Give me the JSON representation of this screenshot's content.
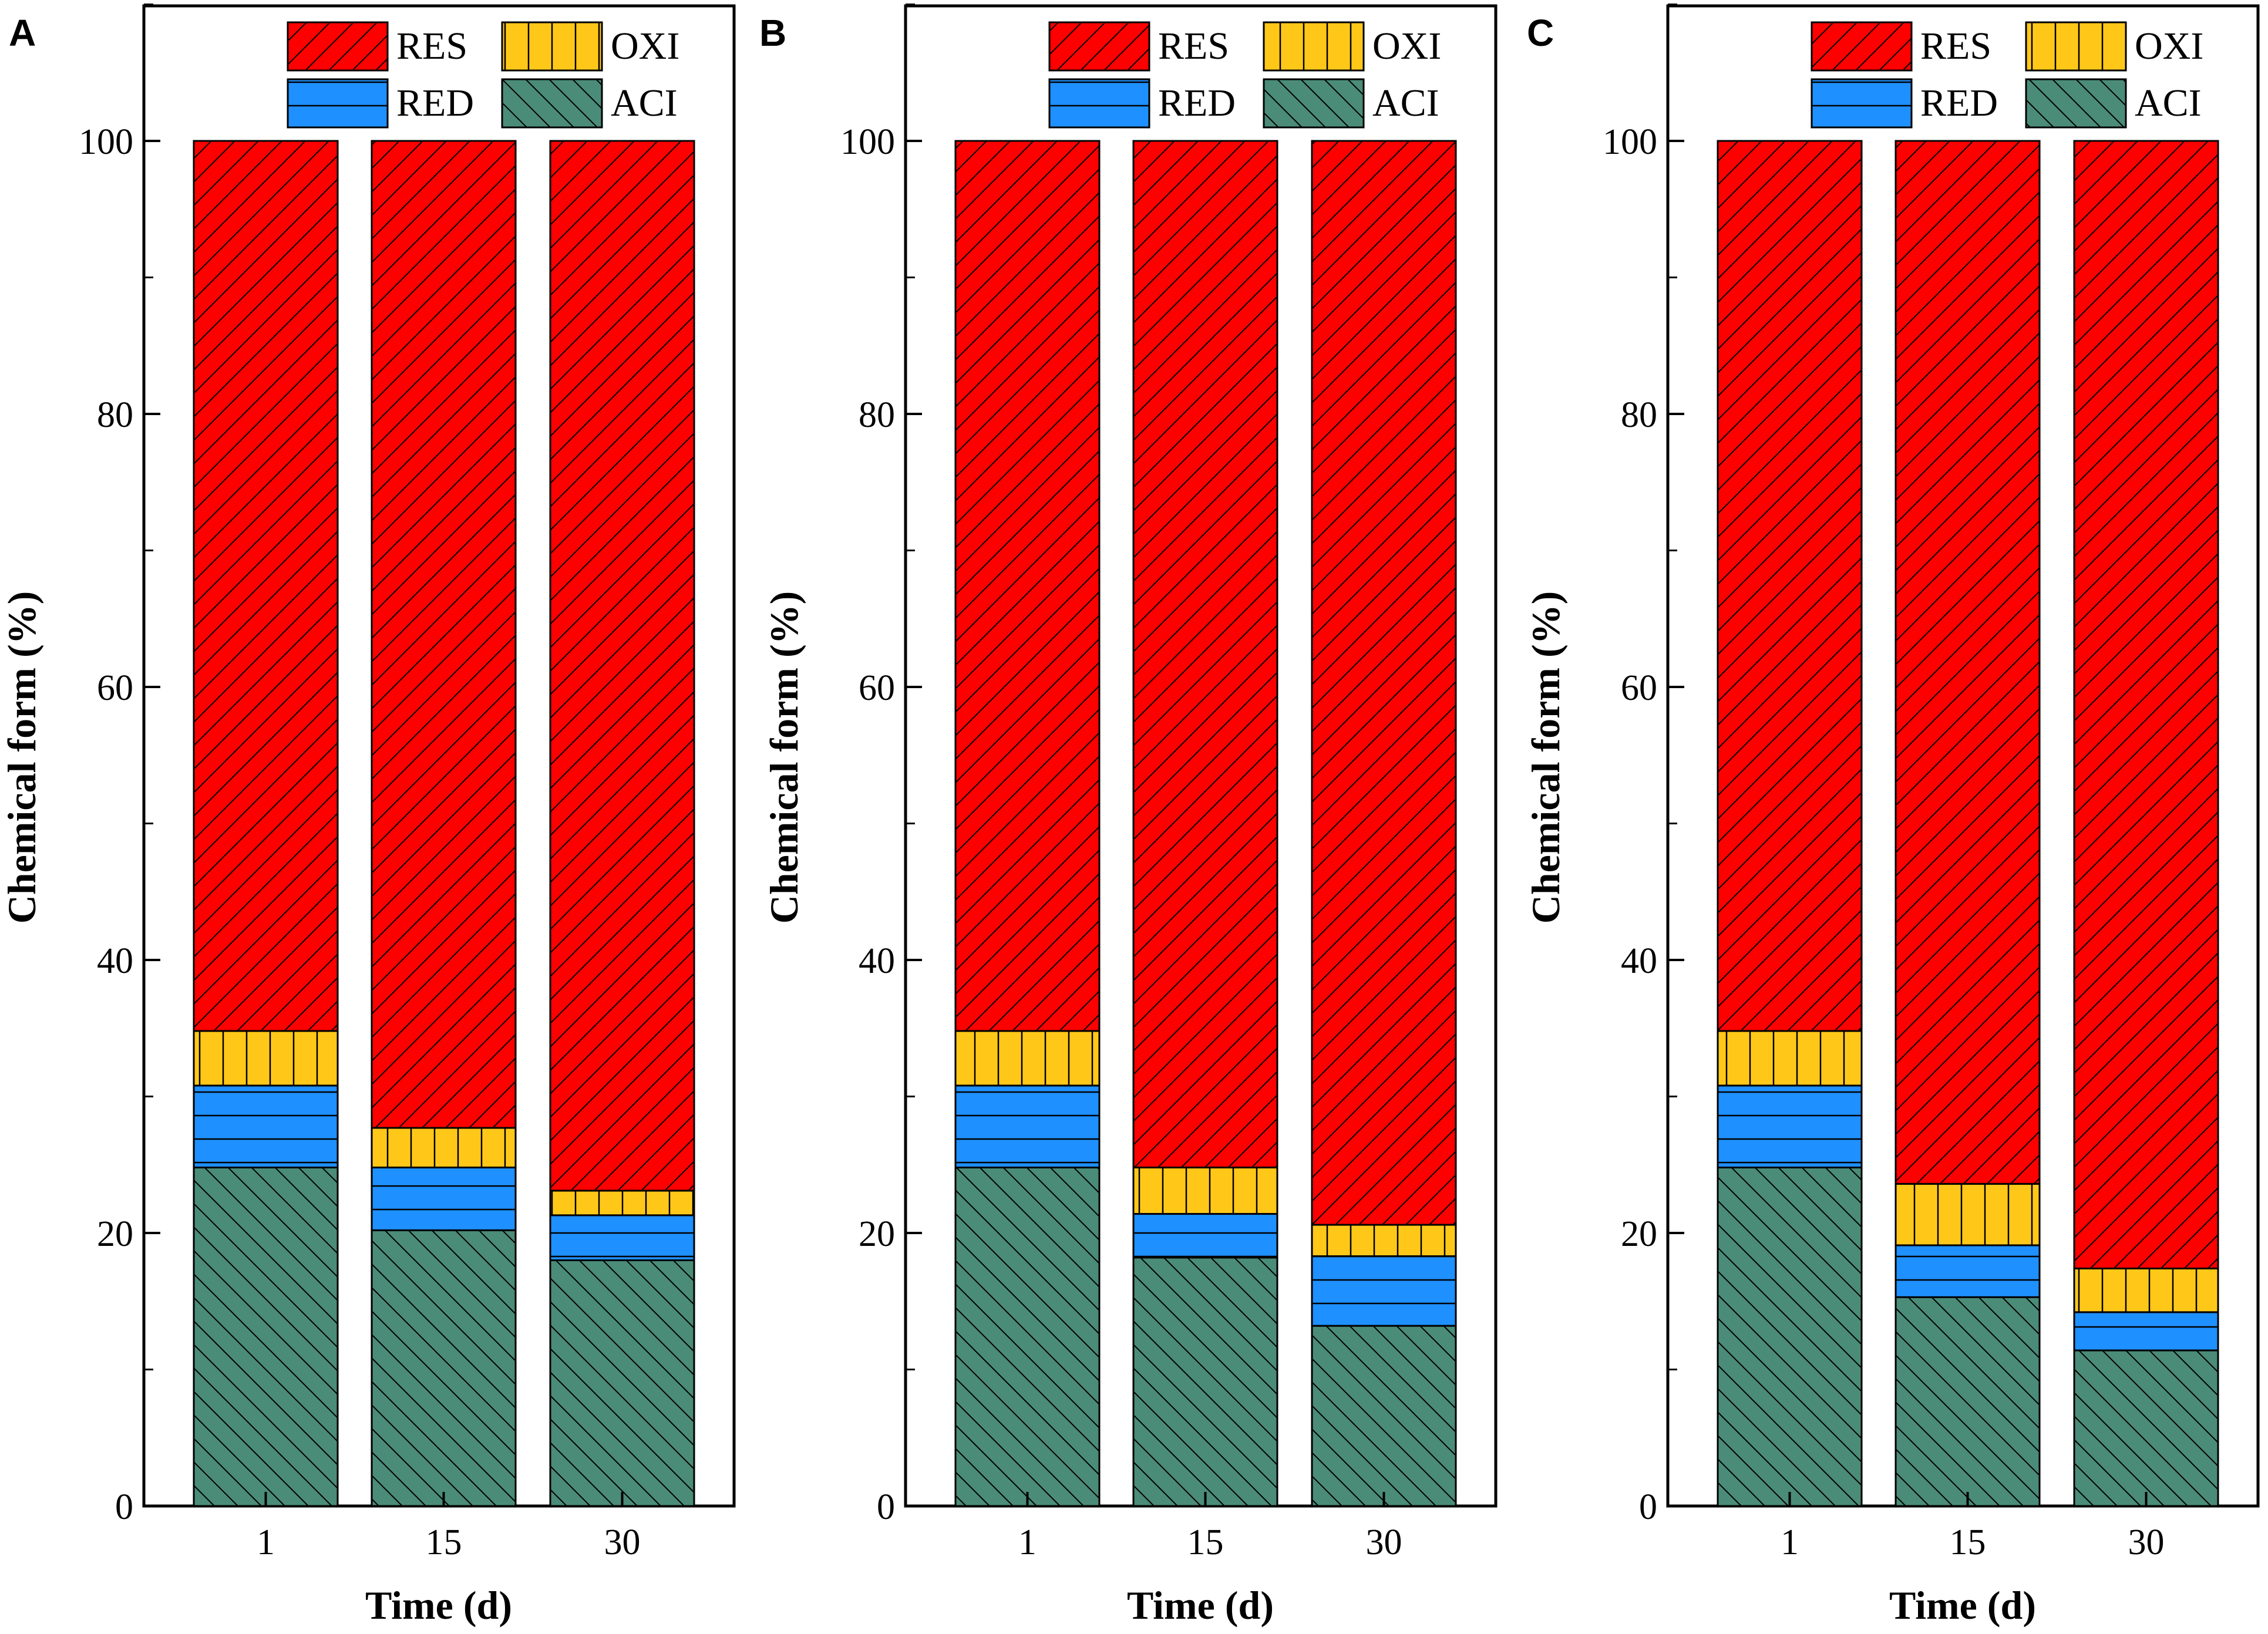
{
  "chart_data": [
    {
      "type": "bar",
      "stacked": true,
      "panel_label": "A",
      "categories": [
        "1",
        "15",
        "30"
      ],
      "xlabel": "Time (d)",
      "ylabel": "Chemical form (%)",
      "ylim": [
        0,
        110
      ],
      "yticks": [
        "0",
        "20",
        "40",
        "60",
        "80",
        "100"
      ],
      "legend_position": "top",
      "series": [
        {
          "name": "ACI",
          "values": [
            24.8,
            20.2,
            18.0
          ]
        },
        {
          "name": "RED",
          "values": [
            6.0,
            4.6,
            3.3
          ]
        },
        {
          "name": "OXI",
          "values": [
            4.0,
            2.9,
            1.8
          ]
        },
        {
          "name": "RES",
          "values": [
            65.2,
            72.3,
            76.9
          ]
        }
      ]
    },
    {
      "type": "bar",
      "stacked": true,
      "panel_label": "B",
      "categories": [
        "1",
        "15",
        "30"
      ],
      "xlabel": "Time (d)",
      "ylabel": "Chemical form (%)",
      "ylim": [
        0,
        110
      ],
      "yticks": [
        "0",
        "20",
        "40",
        "60",
        "80",
        "100"
      ],
      "legend_position": "top",
      "series": [
        {
          "name": "ACI",
          "values": [
            24.8,
            18.2,
            13.2
          ]
        },
        {
          "name": "RED",
          "values": [
            6.0,
            3.2,
            5.1
          ]
        },
        {
          "name": "OXI",
          "values": [
            4.0,
            3.4,
            2.3
          ]
        },
        {
          "name": "RES",
          "values": [
            65.2,
            75.2,
            79.4
          ]
        }
      ]
    },
    {
      "type": "bar",
      "stacked": true,
      "panel_label": "C",
      "categories": [
        "1",
        "15",
        "30"
      ],
      "xlabel": "Time (d)",
      "ylabel": "Chemical form (%)",
      "ylim": [
        0,
        110
      ],
      "yticks": [
        "0",
        "20",
        "40",
        "60",
        "80",
        "100"
      ],
      "legend_position": "top",
      "series": [
        {
          "name": "ACI",
          "values": [
            24.8,
            15.3,
            11.4
          ]
        },
        {
          "name": "RED",
          "values": [
            6.0,
            3.8,
            2.8
          ]
        },
        {
          "name": "OXI",
          "values": [
            4.0,
            4.5,
            3.2
          ]
        },
        {
          "name": "RES",
          "values": [
            65.2,
            76.4,
            82.6
          ]
        }
      ]
    }
  ],
  "legend": [
    {
      "name": "RES",
      "color": "#ff0000",
      "pattern": "hatch-forward"
    },
    {
      "name": "OXI",
      "color": "#ffc819",
      "pattern": "vertical"
    },
    {
      "name": "RED",
      "color": "#1e90ff",
      "pattern": "horizontal"
    },
    {
      "name": "ACI",
      "color": "#4a8c78",
      "pattern": "hatch-back"
    }
  ]
}
